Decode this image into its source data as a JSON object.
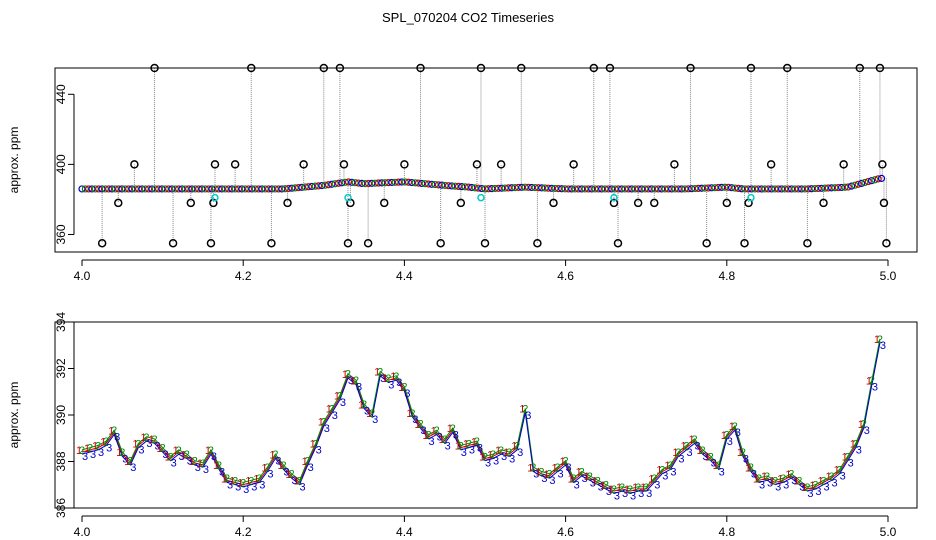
{
  "figure": {
    "title": "SPL_070204  CO2 Timeseries"
  },
  "chart_data": [
    {
      "type": "scatter",
      "ylabel": "approx. ppm",
      "xlim": [
        4.0,
        5.0
      ],
      "ylim": [
        350,
        455
      ],
      "x_ticks": [
        "4.0",
        "4.2",
        "4.4",
        "4.6",
        "4.8",
        "5.0"
      ],
      "y_ticks": [
        "360",
        "400",
        "440"
      ],
      "baseline": {
        "x": [
          4.0,
          4.05,
          4.1,
          4.15,
          4.16,
          4.2,
          4.25,
          4.3,
          4.33,
          4.35,
          4.4,
          4.45,
          4.48,
          4.5,
          4.55,
          4.6,
          4.65,
          4.66,
          4.7,
          4.75,
          4.8,
          4.82,
          4.85,
          4.9,
          4.95,
          4.99
        ],
        "y": [
          386,
          386,
          386,
          386,
          386,
          386,
          386,
          388,
          390,
          389,
          390,
          388,
          387,
          386,
          387,
          386,
          386,
          386,
          386,
          386,
          387,
          386,
          386,
          386,
          387,
          392
        ]
      },
      "outliers": {
        "x": [
          4.025,
          4.045,
          4.065,
          4.09,
          4.113,
          4.135,
          4.16,
          4.163,
          4.165,
          4.19,
          4.21,
          4.235,
          4.255,
          4.275,
          4.3,
          4.32,
          4.325,
          4.33,
          4.333,
          4.355,
          4.375,
          4.4,
          4.42,
          4.445,
          4.47,
          4.49,
          4.495,
          4.5,
          4.52,
          4.545,
          4.565,
          4.585,
          4.61,
          4.635,
          4.655,
          4.66,
          4.665,
          4.69,
          4.71,
          4.735,
          4.755,
          4.775,
          4.8,
          4.822,
          4.827,
          4.83,
          4.855,
          4.875,
          4.9,
          4.92,
          4.945,
          4.965,
          4.99,
          4.993,
          4.995,
          4.998
        ],
        "y": [
          355,
          378,
          400,
          455,
          355,
          378,
          355,
          378,
          400,
          400,
          455,
          355,
          378,
          400,
          455,
          455,
          400,
          355,
          378,
          355,
          378,
          400,
          455,
          355,
          378,
          400,
          455,
          355,
          400,
          455,
          355,
          378,
          400,
          455,
          455,
          378,
          355,
          378,
          378,
          400,
          455,
          355,
          378,
          355,
          378,
          455,
          400,
          455,
          355,
          378,
          400,
          455,
          455,
          400,
          378,
          355
        ]
      },
      "cyan_points": {
        "x": [
          4.165,
          4.33,
          4.495,
          4.66,
          4.83
        ],
        "y": [
          381,
          381,
          381,
          381,
          381
        ]
      }
    },
    {
      "type": "line",
      "ylabel": "approx. ppm",
      "xlim": [
        4.0,
        5.0
      ],
      "ylim": [
        386,
        394
      ],
      "x_ticks": [
        "4.0",
        "4.2",
        "4.4",
        "4.6",
        "4.8",
        "5.0"
      ],
      "y_ticks": [
        "386",
        "388",
        "390",
        "392",
        "394"
      ],
      "series": [
        {
          "x": [
            4.0,
            4.01,
            4.02,
            4.03,
            4.04,
            4.05,
            4.06,
            4.07,
            4.08,
            4.09,
            4.1,
            4.11,
            4.12,
            4.13,
            4.14,
            4.15,
            4.16,
            4.17,
            4.18,
            4.19,
            4.2,
            4.21,
            4.22,
            4.23,
            4.24,
            4.25,
            4.26,
            4.27,
            4.28,
            4.29,
            4.3,
            4.31,
            4.32,
            4.33,
            4.34,
            4.35,
            4.36,
            4.37,
            4.38,
            4.39,
            4.4,
            4.41,
            4.42,
            4.43,
            4.44,
            4.45,
            4.46,
            4.47,
            4.48,
            4.49,
            4.5,
            4.51,
            4.52,
            4.53,
            4.54,
            4.55,
            4.56,
            4.57,
            4.58,
            4.59,
            4.6,
            4.61,
            4.62,
            4.63,
            4.64,
            4.65,
            4.66,
            4.67,
            4.68,
            4.69,
            4.7,
            4.71,
            4.72,
            4.73,
            4.74,
            4.75,
            4.76,
            4.77,
            4.78,
            4.79,
            4.8,
            4.81,
            4.82,
            4.83,
            4.84,
            4.85,
            4.86,
            4.87,
            4.88,
            4.89,
            4.9,
            4.91,
            4.92,
            4.93,
            4.94,
            4.95,
            4.96,
            4.97,
            4.98,
            4.99
          ],
          "y": [
            388.3,
            388.4,
            388.5,
            388.7,
            389.2,
            388.2,
            387.8,
            388.6,
            388.9,
            388.8,
            388.4,
            388.0,
            388.3,
            388.1,
            387.8,
            387.7,
            388.3,
            387.6,
            387.0,
            386.9,
            386.8,
            386.9,
            387.0,
            387.5,
            388.1,
            387.6,
            387.2,
            386.9,
            387.8,
            388.6,
            389.6,
            390.2,
            390.8,
            391.8,
            391.5,
            390.4,
            390.0,
            391.9,
            391.6,
            391.7,
            391.2,
            390.0,
            389.5,
            389.0,
            389.2,
            388.8,
            389.3,
            388.5,
            388.6,
            388.7,
            388.0,
            388.1,
            388.3,
            388.2,
            388.5,
            390.2,
            387.5,
            387.3,
            387.2,
            387.5,
            387.8,
            387.0,
            387.3,
            387.1,
            386.9,
            386.7,
            386.5,
            386.6,
            386.5,
            386.6,
            386.6,
            387.0,
            387.4,
            387.6,
            388.2,
            388.5,
            388.8,
            388.3,
            388.0,
            387.6,
            389.0,
            389.4,
            388.2,
            387.5,
            387.0,
            387.1,
            386.9,
            387.0,
            387.2,
            386.9,
            386.6,
            386.7,
            386.9,
            387.1,
            387.4,
            388.0,
            388.6,
            389.5,
            391.5,
            393.4
          ]
        }
      ]
    }
  ]
}
